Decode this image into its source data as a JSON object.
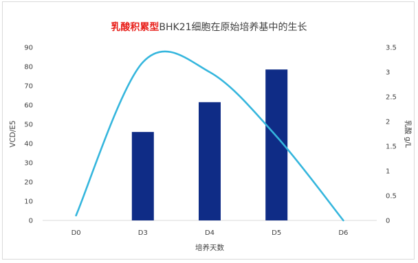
{
  "chart_data": {
    "type": "bar+line",
    "title_highlight": "乳酸积累型",
    "title_rest": "BHK21细胞在原始培养基中的生长",
    "categories": [
      "D0",
      "D3",
      "D4",
      "D5",
      "D6"
    ],
    "xlabel": "培养天数",
    "ylabel": "VCD/E5",
    "y2label": "乳酸 g/L",
    "ylim": [
      0,
      90
    ],
    "y2lim": [
      0,
      3.5
    ],
    "yticks": [
      "0",
      "10",
      "20",
      "30",
      "40",
      "50",
      "60",
      "70",
      "80",
      "90"
    ],
    "y2ticks": [
      "0",
      "0.5",
      "1",
      "1.5",
      "2",
      "2.5",
      "3",
      "3.5"
    ],
    "series": [
      {
        "type": "bar",
        "axis": "left",
        "values": [
          0,
          46,
          61.5,
          78.5,
          0
        ]
      },
      {
        "type": "line",
        "axis": "right",
        "smooth": true,
        "values": [
          0.1,
          3.2,
          3.0,
          1.7,
          0
        ]
      }
    ],
    "colors": {
      "bar": "#0f2c86",
      "line": "#35b6dd",
      "title_highlight": "#e8211c",
      "text": "#404040"
    },
    "grid": false,
    "legend": "none"
  }
}
